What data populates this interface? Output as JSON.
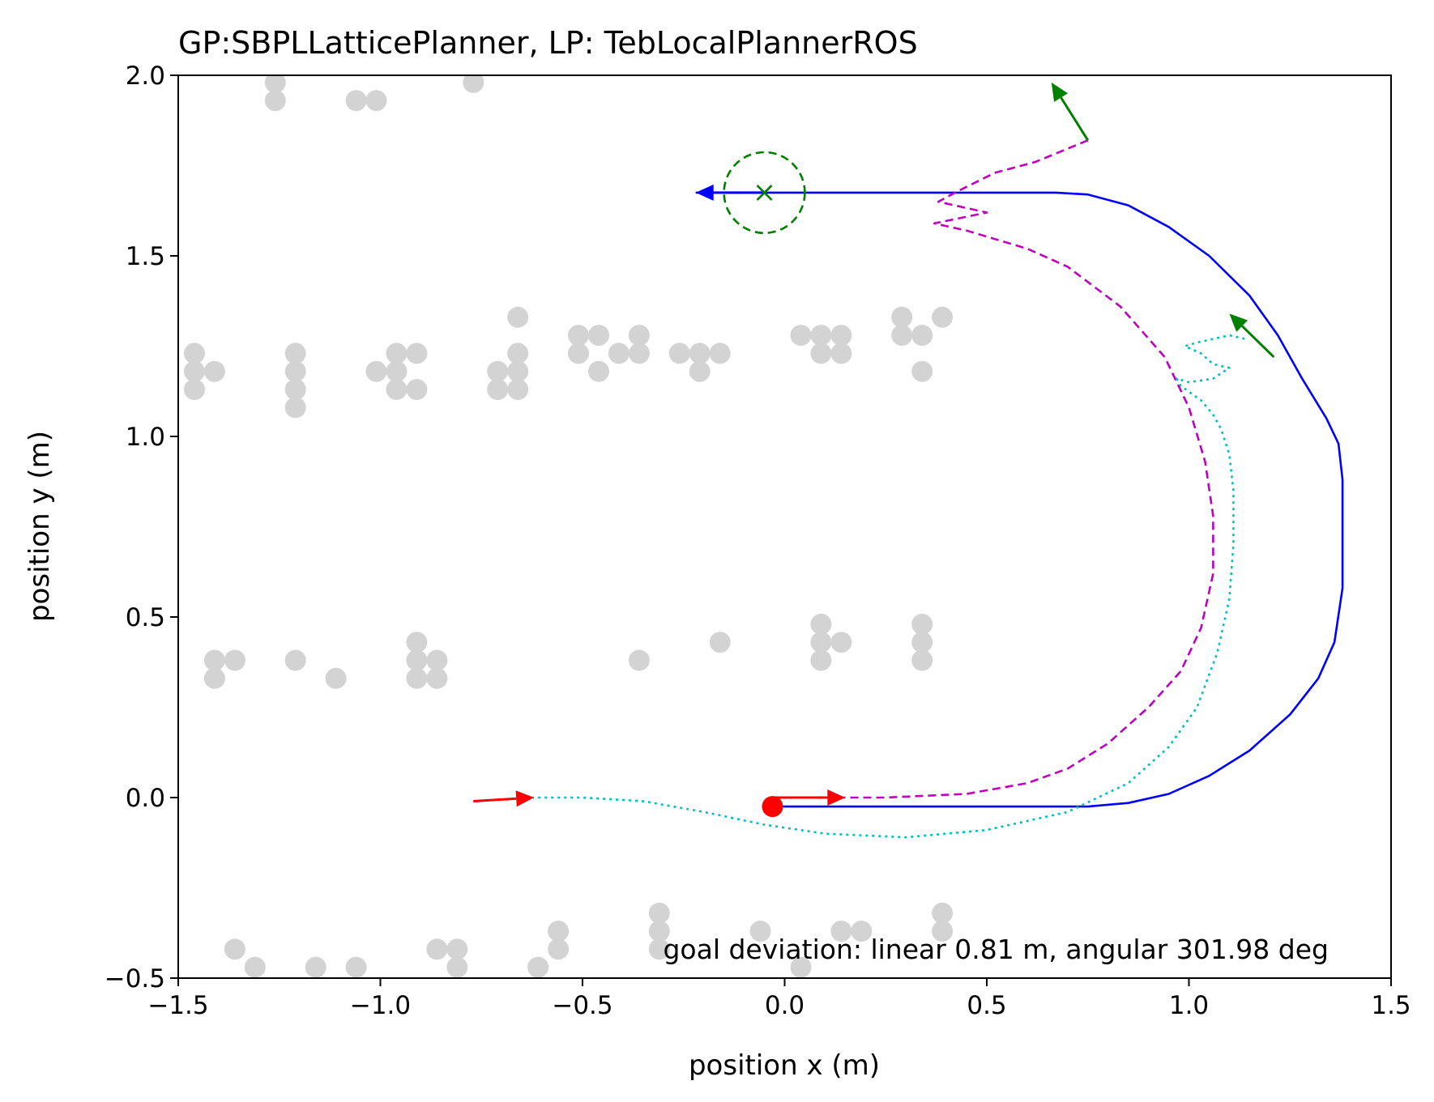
{
  "chart_data": {
    "type": "scatter",
    "title": "GP:SBPLLatticePlanner, LP: TebLocalPlannerROS",
    "xlabel": "position x (m)",
    "ylabel": "position y (m)",
    "xlim": [
      -1.5,
      1.5
    ],
    "ylim": [
      -0.5,
      2.0
    ],
    "grid": false,
    "xticks": [
      -1.5,
      -1.0,
      -0.5,
      0.0,
      0.5,
      1.0,
      1.5
    ],
    "xtick_labels": [
      "−1.5",
      "−1.0",
      "−0.5",
      "0.0",
      "0.5",
      "1.0",
      "1.5"
    ],
    "yticks": [
      -0.5,
      0.0,
      0.5,
      1.0,
      1.5,
      2.0
    ],
    "ytick_labels": [
      "−0.5",
      "0.0",
      "0.5",
      "1.0",
      "1.5",
      "2.0"
    ],
    "annotation": "goal deviation: linear 0.81 m, angular 301.98 deg",
    "colors": {
      "obstacles": "#d3d3d3",
      "global_plan": "#0000ff",
      "local_plan": "#bf00bf",
      "robot_path": "#00bfbf",
      "goal": "#008000",
      "robot": "#ff0000"
    },
    "obstacles": [
      [
        -1.26,
        1.98
      ],
      [
        -1.26,
        1.93
      ],
      [
        -1.06,
        1.93
      ],
      [
        -1.01,
        1.93
      ],
      [
        -0.77,
        1.98
      ],
      [
        -1.46,
        1.23
      ],
      [
        -1.46,
        1.18
      ],
      [
        -1.46,
        1.13
      ],
      [
        -1.41,
        1.18
      ],
      [
        -1.21,
        1.23
      ],
      [
        -1.21,
        1.18
      ],
      [
        -1.21,
        1.13
      ],
      [
        -1.21,
        1.08
      ],
      [
        -1.01,
        1.18
      ],
      [
        -0.96,
        1.23
      ],
      [
        -0.96,
        1.18
      ],
      [
        -0.96,
        1.13
      ],
      [
        -0.91,
        1.23
      ],
      [
        -0.91,
        1.13
      ],
      [
        -0.71,
        1.18
      ],
      [
        -0.71,
        1.13
      ],
      [
        -0.66,
        1.33
      ],
      [
        -0.66,
        1.23
      ],
      [
        -0.66,
        1.18
      ],
      [
        -0.66,
        1.13
      ],
      [
        -0.51,
        1.28
      ],
      [
        -0.51,
        1.23
      ],
      [
        -0.46,
        1.28
      ],
      [
        -0.46,
        1.18
      ],
      [
        -0.41,
        1.23
      ],
      [
        -0.36,
        1.28
      ],
      [
        -0.36,
        1.23
      ],
      [
        -0.26,
        1.23
      ],
      [
        -0.21,
        1.23
      ],
      [
        -0.21,
        1.18
      ],
      [
        -0.16,
        1.23
      ],
      [
        0.04,
        1.28
      ],
      [
        0.09,
        1.28
      ],
      [
        0.09,
        1.23
      ],
      [
        0.14,
        1.28
      ],
      [
        0.14,
        1.23
      ],
      [
        0.29,
        1.33
      ],
      [
        0.29,
        1.28
      ],
      [
        0.34,
        1.28
      ],
      [
        0.34,
        1.18
      ],
      [
        0.39,
        1.33
      ],
      [
        -1.41,
        0.38
      ],
      [
        -1.41,
        0.33
      ],
      [
        -1.36,
        0.38
      ],
      [
        -1.21,
        0.38
      ],
      [
        -1.11,
        0.33
      ],
      [
        -0.91,
        0.43
      ],
      [
        -0.91,
        0.38
      ],
      [
        -0.91,
        0.33
      ],
      [
        -0.86,
        0.38
      ],
      [
        -0.86,
        0.33
      ],
      [
        -0.36,
        0.38
      ],
      [
        -0.16,
        0.43
      ],
      [
        0.09,
        0.48
      ],
      [
        0.09,
        0.43
      ],
      [
        0.09,
        0.38
      ],
      [
        0.14,
        0.43
      ],
      [
        0.34,
        0.48
      ],
      [
        0.34,
        0.43
      ],
      [
        0.34,
        0.38
      ],
      [
        -1.36,
        -0.42
      ],
      [
        -1.31,
        -0.47
      ],
      [
        -1.16,
        -0.47
      ],
      [
        -1.06,
        -0.47
      ],
      [
        -0.86,
        -0.42
      ],
      [
        -0.81,
        -0.42
      ],
      [
        -0.81,
        -0.47
      ],
      [
        -0.61,
        -0.47
      ],
      [
        -0.56,
        -0.37
      ],
      [
        -0.56,
        -0.42
      ],
      [
        -0.31,
        -0.32
      ],
      [
        -0.31,
        -0.37
      ],
      [
        -0.31,
        -0.42
      ],
      [
        -0.06,
        -0.37
      ],
      [
        0.04,
        -0.47
      ],
      [
        0.14,
        -0.37
      ],
      [
        0.19,
        -0.37
      ],
      [
        0.39,
        -0.32
      ],
      [
        0.39,
        -0.37
      ]
    ],
    "series": [
      {
        "style": "solid",
        "points": [
          [
            -0.03,
            -0.025
          ],
          [
            0.75,
            -0.025
          ],
          [
            0.85,
            -0.015
          ],
          [
            0.95,
            0.01
          ],
          [
            1.05,
            0.06
          ],
          [
            1.15,
            0.13
          ],
          [
            1.25,
            0.23
          ],
          [
            1.32,
            0.33
          ],
          [
            1.36,
            0.43
          ],
          [
            1.38,
            0.58
          ],
          [
            1.38,
            0.88
          ],
          [
            1.37,
            0.98
          ],
          [
            1.34,
            1.05
          ],
          [
            1.28,
            1.16
          ],
          [
            1.22,
            1.28
          ],
          [
            1.15,
            1.39
          ],
          [
            1.05,
            1.5
          ],
          [
            0.95,
            1.58
          ],
          [
            0.85,
            1.64
          ],
          [
            0.75,
            1.67
          ],
          [
            0.67,
            1.675
          ],
          [
            -0.22,
            1.675
          ]
        ]
      },
      {
        "style": "dashed",
        "points": [
          [
            -0.03,
            0.0
          ],
          [
            0.25,
            0.0
          ],
          [
            0.45,
            0.01
          ],
          [
            0.6,
            0.04
          ],
          [
            0.7,
            0.08
          ],
          [
            0.8,
            0.15
          ],
          [
            0.9,
            0.25
          ],
          [
            0.98,
            0.35
          ],
          [
            1.03,
            0.47
          ],
          [
            1.06,
            0.62
          ],
          [
            1.06,
            0.78
          ],
          [
            1.04,
            0.93
          ],
          [
            1.0,
            1.08
          ],
          [
            0.94,
            1.22
          ],
          [
            0.83,
            1.36
          ],
          [
            0.7,
            1.47
          ],
          [
            0.6,
            1.52
          ],
          [
            0.45,
            1.57
          ],
          [
            0.37,
            1.59
          ],
          [
            0.5,
            1.62
          ],
          [
            0.38,
            1.65
          ],
          [
            0.43,
            1.68
          ],
          [
            0.52,
            1.73
          ],
          [
            0.62,
            1.76
          ],
          [
            0.75,
            1.82
          ]
        ]
      },
      {
        "style": "dotted",
        "points": [
          [
            -0.77,
            -0.01
          ],
          [
            -0.62,
            0.0
          ],
          [
            -0.5,
            0.0
          ],
          [
            -0.35,
            -0.01
          ],
          [
            -0.2,
            -0.04
          ],
          [
            -0.05,
            -0.075
          ],
          [
            0.1,
            -0.1
          ],
          [
            0.3,
            -0.11
          ],
          [
            0.5,
            -0.09
          ],
          [
            0.7,
            -0.04
          ],
          [
            0.85,
            0.04
          ],
          [
            0.95,
            0.14
          ],
          [
            1.02,
            0.25
          ],
          [
            1.07,
            0.4
          ],
          [
            1.1,
            0.55
          ],
          [
            1.11,
            0.7
          ],
          [
            1.11,
            0.85
          ],
          [
            1.1,
            0.95
          ],
          [
            1.08,
            1.02
          ],
          [
            1.06,
            1.06
          ],
          [
            1.03,
            1.1
          ],
          [
            0.98,
            1.14
          ],
          [
            0.97,
            1.16
          ],
          [
            1.0,
            1.15
          ],
          [
            1.06,
            1.16
          ],
          [
            1.1,
            1.19
          ],
          [
            1.06,
            1.2
          ],
          [
            1.03,
            1.23
          ],
          [
            0.99,
            1.25
          ],
          [
            1.02,
            1.26
          ],
          [
            1.06,
            1.27
          ],
          [
            1.1,
            1.28
          ],
          [
            1.14,
            1.27
          ]
        ]
      }
    ],
    "goal": {
      "x": -0.05,
      "y": 1.675,
      "radius": 0.1
    },
    "robot": {
      "x": -0.03,
      "y": -0.025
    },
    "arrows": [
      {
        "role": "start-pose",
        "from": [
          -0.77,
          -0.01
        ],
        "to": [
          -0.62,
          0.0
        ]
      },
      {
        "role": "local-plan-heading",
        "from": [
          -0.03,
          0.0
        ],
        "to": [
          0.15,
          0.0
        ]
      },
      {
        "role": "global-plan-end",
        "from": [
          -0.05,
          1.675
        ],
        "to": [
          -0.22,
          1.675
        ]
      },
      {
        "role": "goal-heading",
        "from": [
          0.75,
          1.82
        ],
        "to": [
          0.66,
          1.98
        ]
      },
      {
        "role": "robot-heading",
        "from": [
          1.21,
          1.22
        ],
        "to": [
          1.1,
          1.34
        ]
      }
    ]
  }
}
